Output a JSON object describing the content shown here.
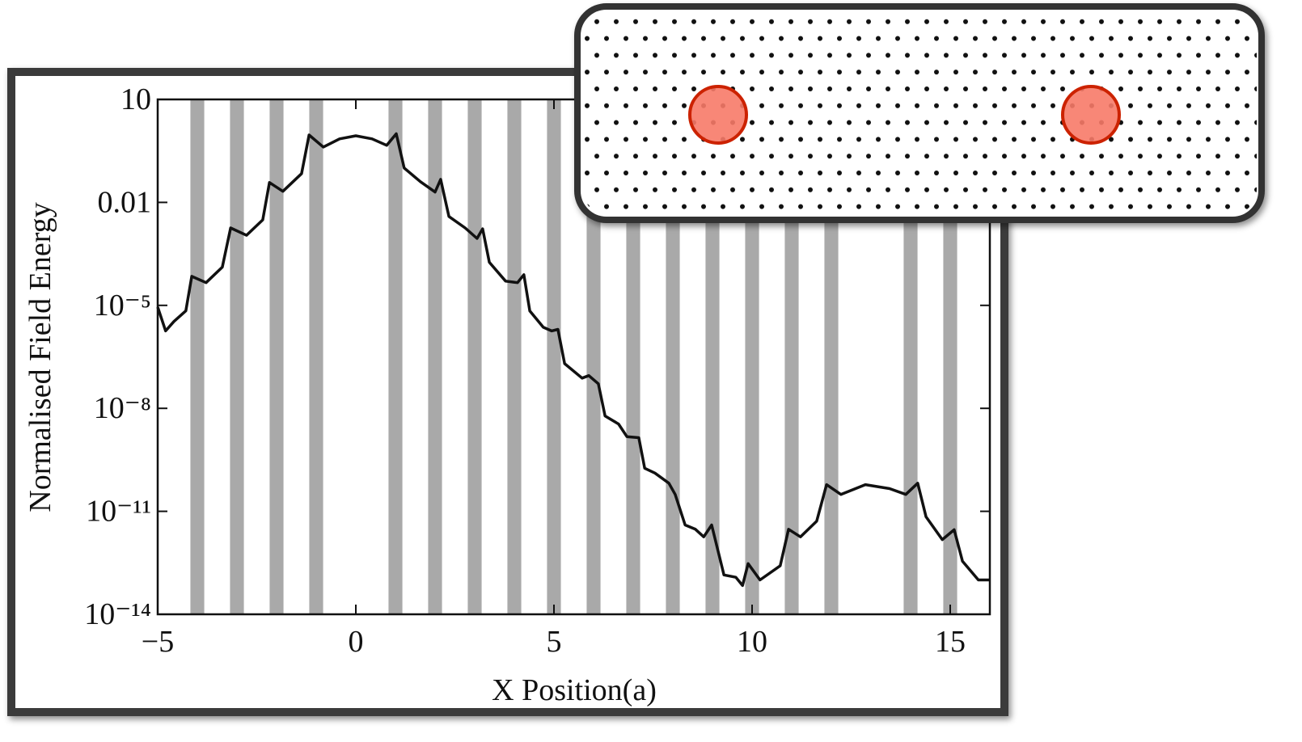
{
  "chart_data": {
    "type": "line",
    "yscale": "log",
    "xlabel": "X Position(a)",
    "ylabel": "Normalised Field Energy",
    "xlim": [
      -5,
      16
    ],
    "xticks": [
      {
        "value": -5,
        "label": "−5"
      },
      0,
      5,
      10,
      15
    ],
    "ylim": [
      1e-14,
      10
    ],
    "yticks": [
      10,
      0.01,
      {
        "value": 1e-05,
        "label": "10⁻⁵"
      },
      {
        "value": 1e-08,
        "label": "10⁻⁸"
      },
      {
        "value": 1e-11,
        "label": "10⁻¹¹"
      },
      {
        "value": 1e-14,
        "label": "10⁻¹⁴"
      }
    ],
    "band_color": "#a9a9a9",
    "bands": [
      -4,
      -3,
      -2,
      -1,
      1,
      2,
      3,
      4,
      5,
      6,
      7,
      8,
      9,
      10,
      11,
      12,
      14,
      15
    ],
    "series": [
      {
        "color": "#111111",
        "x": [
          -5.0,
          -4.8,
          -4.59,
          -4.29,
          -4.14,
          -3.78,
          -3.37,
          -3.16,
          -2.76,
          -2.35,
          -2.18,
          -1.84,
          -1.37,
          -1.18,
          -0.82,
          -0.41,
          0.0,
          0.41,
          0.78,
          1.02,
          1.22,
          1.63,
          2.0,
          2.14,
          2.35,
          2.76,
          3.06,
          3.2,
          3.37,
          3.78,
          4.08,
          4.24,
          4.39,
          4.73,
          4.94,
          5.1,
          5.27,
          5.71,
          5.88,
          6.12,
          6.29,
          6.63,
          6.84,
          7.14,
          7.29,
          7.55,
          7.9,
          8.06,
          8.31,
          8.57,
          8.78,
          8.98,
          9.29,
          9.59,
          9.76,
          9.9,
          10.2,
          10.71,
          10.92,
          11.22,
          11.63,
          11.88,
          12.24,
          12.86,
          13.47,
          13.88,
          14.18,
          14.39,
          14.8,
          15.1,
          15.31,
          15.71,
          16.0
        ],
        "values": [
          8.9e-06,
          1.8e-06,
          3.4e-06,
          6.9e-06,
          7e-05,
          4.6e-05,
          0.00013,
          0.0018,
          0.0011,
          0.0031,
          0.038,
          0.021,
          0.069,
          0.92,
          0.41,
          0.71,
          0.87,
          0.71,
          0.46,
          1.0,
          0.1,
          0.04,
          0.02,
          0.047,
          0.0039,
          0.0018,
          0.00089,
          0.0017,
          0.00018,
          5.1e-05,
          4.6e-05,
          7.8e-05,
          6.9e-06,
          2.3e-06,
          1.8e-06,
          2e-06,
          2e-07,
          7.6e-08,
          9e-08,
          5.2e-08,
          6e-09,
          3.5e-09,
          1.5e-09,
          1.4e-09,
          1.8e-10,
          1.3e-10,
          6.6e-11,
          3.1e-11,
          4e-12,
          3e-12,
          1.8e-12,
          4e-12,
          1.4e-13,
          1.2e-13,
          6.9e-14,
          3e-13,
          1e-13,
          2.6e-13,
          3e-12,
          1.8e-12,
          5.2e-12,
          6e-11,
          3.1e-11,
          6e-11,
          4.6e-11,
          3.1e-11,
          6.6e-11,
          6.9e-12,
          1.5e-12,
          2.9e-12,
          3.5e-13,
          1e-13,
          1e-13
        ]
      }
    ]
  }
}
